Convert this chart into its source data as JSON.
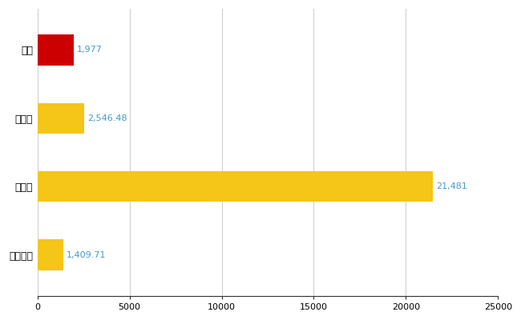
{
  "categories": [
    "東区",
    "県平均",
    "県最大",
    "全国平均"
  ],
  "values": [
    1977,
    2546.48,
    21481,
    1409.71
  ],
  "bar_colors": [
    "#cc0000",
    "#f5c518",
    "#f5c518",
    "#f5c518"
  ],
  "value_labels": [
    "1,977",
    "2,546.48",
    "21,481",
    "1,409.71"
  ],
  "xlim": [
    0,
    25000
  ],
  "xticks": [
    0,
    5000,
    10000,
    15000,
    20000,
    25000
  ],
  "xtick_labels": [
    "0",
    "5000",
    "10000",
    "15000",
    "20000",
    "25000"
  ],
  "background_color": "#ffffff",
  "grid_color": "#cccccc",
  "label_color": "#4499cc",
  "bar_height": 0.45,
  "figsize": [
    6.5,
    4.0
  ],
  "dpi": 100
}
